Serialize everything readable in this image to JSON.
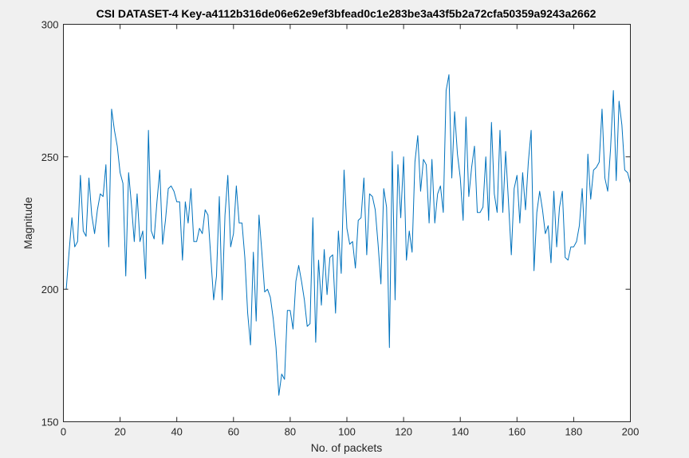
{
  "chart_data": {
    "type": "line",
    "title": "CSI DATASET-4  Key-a4112b316de06e62e9ef3bfead0c1e283be3a43f5b2a72cfa50359a9243a2662",
    "xlabel": "No. of packets",
    "ylabel": "Magnitude",
    "xlim": [
      0,
      200
    ],
    "ylim": [
      150,
      300
    ],
    "xticks": [
      0,
      20,
      40,
      60,
      80,
      100,
      120,
      140,
      160,
      180,
      200
    ],
    "yticks": [
      150,
      200,
      250,
      300
    ],
    "grid": false,
    "legend": "none",
    "colors": {
      "line": "#0072bd",
      "axes": "#262626",
      "plot_bg": "#ffffff",
      "figure_bg": "#f0f0f0"
    },
    "series": [
      {
        "x": [
          1,
          2,
          3,
          4,
          5,
          6,
          7,
          8,
          9,
          10,
          11,
          12,
          13,
          14,
          15,
          16,
          17,
          18,
          19,
          20,
          21,
          22,
          23,
          24,
          25,
          26,
          27,
          28,
          29,
          30,
          31,
          32,
          33,
          34,
          35,
          36,
          37,
          38,
          39,
          40,
          41,
          42,
          43,
          44,
          45,
          46,
          47,
          48,
          49,
          50,
          51,
          52,
          53,
          54,
          55,
          56,
          57,
          58,
          59,
          60,
          61,
          62,
          63,
          64,
          65,
          66,
          67,
          68,
          69,
          70,
          71,
          72,
          73,
          74,
          75,
          76,
          77,
          78,
          79,
          80,
          81,
          82,
          83,
          84,
          85,
          86,
          87,
          88,
          89,
          90,
          91,
          92,
          93,
          94,
          95,
          96,
          97,
          98,
          99,
          100,
          101,
          102,
          103,
          104,
          105,
          106,
          107,
          108,
          109,
          110,
          111,
          112,
          113,
          114,
          115,
          116,
          117,
          118,
          119,
          120,
          121,
          122,
          123,
          124,
          125,
          126,
          127,
          128,
          129,
          130,
          131,
          132,
          133,
          134,
          135,
          136,
          137,
          138,
          139,
          140,
          141,
          142,
          143,
          144,
          145,
          146,
          147,
          148,
          149,
          150,
          151,
          152,
          153,
          154,
          155,
          156,
          157,
          158,
          159,
          160,
          161,
          162,
          163,
          164,
          165,
          166,
          167,
          168,
          169,
          170,
          171,
          172,
          173,
          174,
          175,
          176,
          177,
          178,
          179,
          180,
          181,
          182,
          183,
          184,
          185,
          186,
          187,
          188,
          189,
          190,
          191,
          192,
          193,
          194,
          195,
          196,
          197,
          198,
          199,
          200
        ],
        "values": [
          200,
          214,
          227,
          216,
          218,
          243,
          222,
          220,
          242,
          228,
          221,
          230,
          236,
          235,
          247,
          216,
          268,
          260,
          254,
          244,
          240,
          205,
          244,
          232,
          218,
          236,
          218,
          222,
          204,
          260,
          222,
          219,
          233,
          245,
          217,
          226,
          238,
          239,
          237,
          233,
          233,
          211,
          233,
          225,
          238,
          218,
          218,
          223,
          221,
          230,
          228,
          212,
          196,
          205,
          235,
          196,
          228,
          243,
          216,
          221,
          239,
          225,
          225,
          212,
          191,
          179,
          214,
          188,
          228,
          214,
          199,
          200,
          197,
          189,
          178,
          160,
          168,
          166,
          192,
          192,
          185,
          203,
          209,
          203,
          196,
          186,
          187,
          227,
          180,
          211,
          194,
          215,
          198,
          212,
          213,
          191,
          222,
          206,
          245,
          223,
          217,
          218,
          208,
          226,
          227,
          242,
          213,
          236,
          235,
          230,
          217,
          202,
          238,
          231,
          178,
          252,
          196,
          247,
          227,
          250,
          211,
          222,
          214,
          248,
          258,
          237,
          249,
          247,
          225,
          249,
          225,
          236,
          239,
          229,
          275,
          281,
          242,
          267,
          251,
          242,
          226,
          265,
          235,
          246,
          254,
          229,
          229,
          231,
          250,
          226,
          263,
          236,
          229,
          260,
          229,
          252,
          233,
          213,
          238,
          243,
          225,
          244,
          230,
          248,
          260,
          207,
          229,
          237,
          230,
          221,
          224,
          210,
          237,
          216,
          231,
          237,
          212,
          211,
          216,
          216,
          218,
          224,
          238,
          217,
          251,
          234,
          245,
          246,
          248,
          268,
          242,
          237,
          253,
          275,
          241,
          271,
          262,
          245,
          244,
          240
        ]
      }
    ]
  }
}
